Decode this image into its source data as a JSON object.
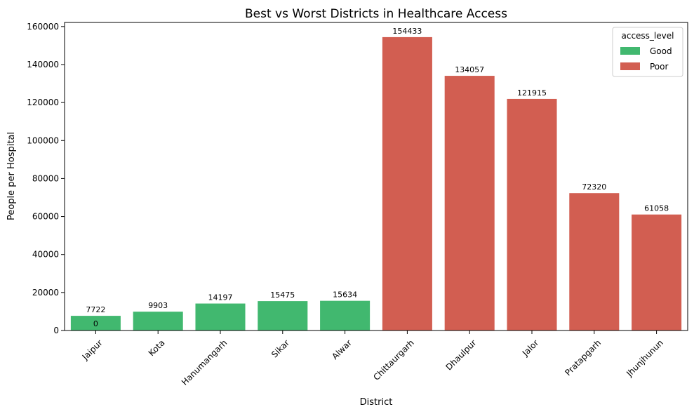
{
  "chart_data": {
    "type": "bar",
    "title": "Best vs Worst Districts in Healthcare Access",
    "xlabel": "District",
    "ylabel": "People per Hospital",
    "ylim": [
      0,
      162155
    ],
    "yticks": [
      0,
      20000,
      40000,
      60000,
      80000,
      100000,
      120000,
      140000,
      160000
    ],
    "grid": false,
    "categories": [
      "Jaipur",
      "Kota",
      "Hanumangarh",
      "Sikar",
      "Alwar",
      "Chittaurgarh",
      "Dhaulpur",
      "Jalor",
      "Pratapgarh",
      "Jhunjhunun"
    ],
    "values": [
      7722,
      9903,
      14197,
      15475,
      15634,
      154433,
      134057,
      121915,
      72320,
      61058
    ],
    "groups": [
      "Good",
      "Good",
      "Good",
      "Good",
      "Good",
      "Poor",
      "Poor",
      "Poor",
      "Poor",
      "Poor"
    ],
    "extra_annotations": [
      {
        "category": "Jaipur",
        "text": "0",
        "value": 0
      }
    ],
    "legend": {
      "title": "access_level",
      "placement": "top-right",
      "entries": [
        {
          "name": "Good",
          "color": "#41b86f"
        },
        {
          "name": "Poor",
          "color": "#d25e51"
        }
      ]
    }
  }
}
